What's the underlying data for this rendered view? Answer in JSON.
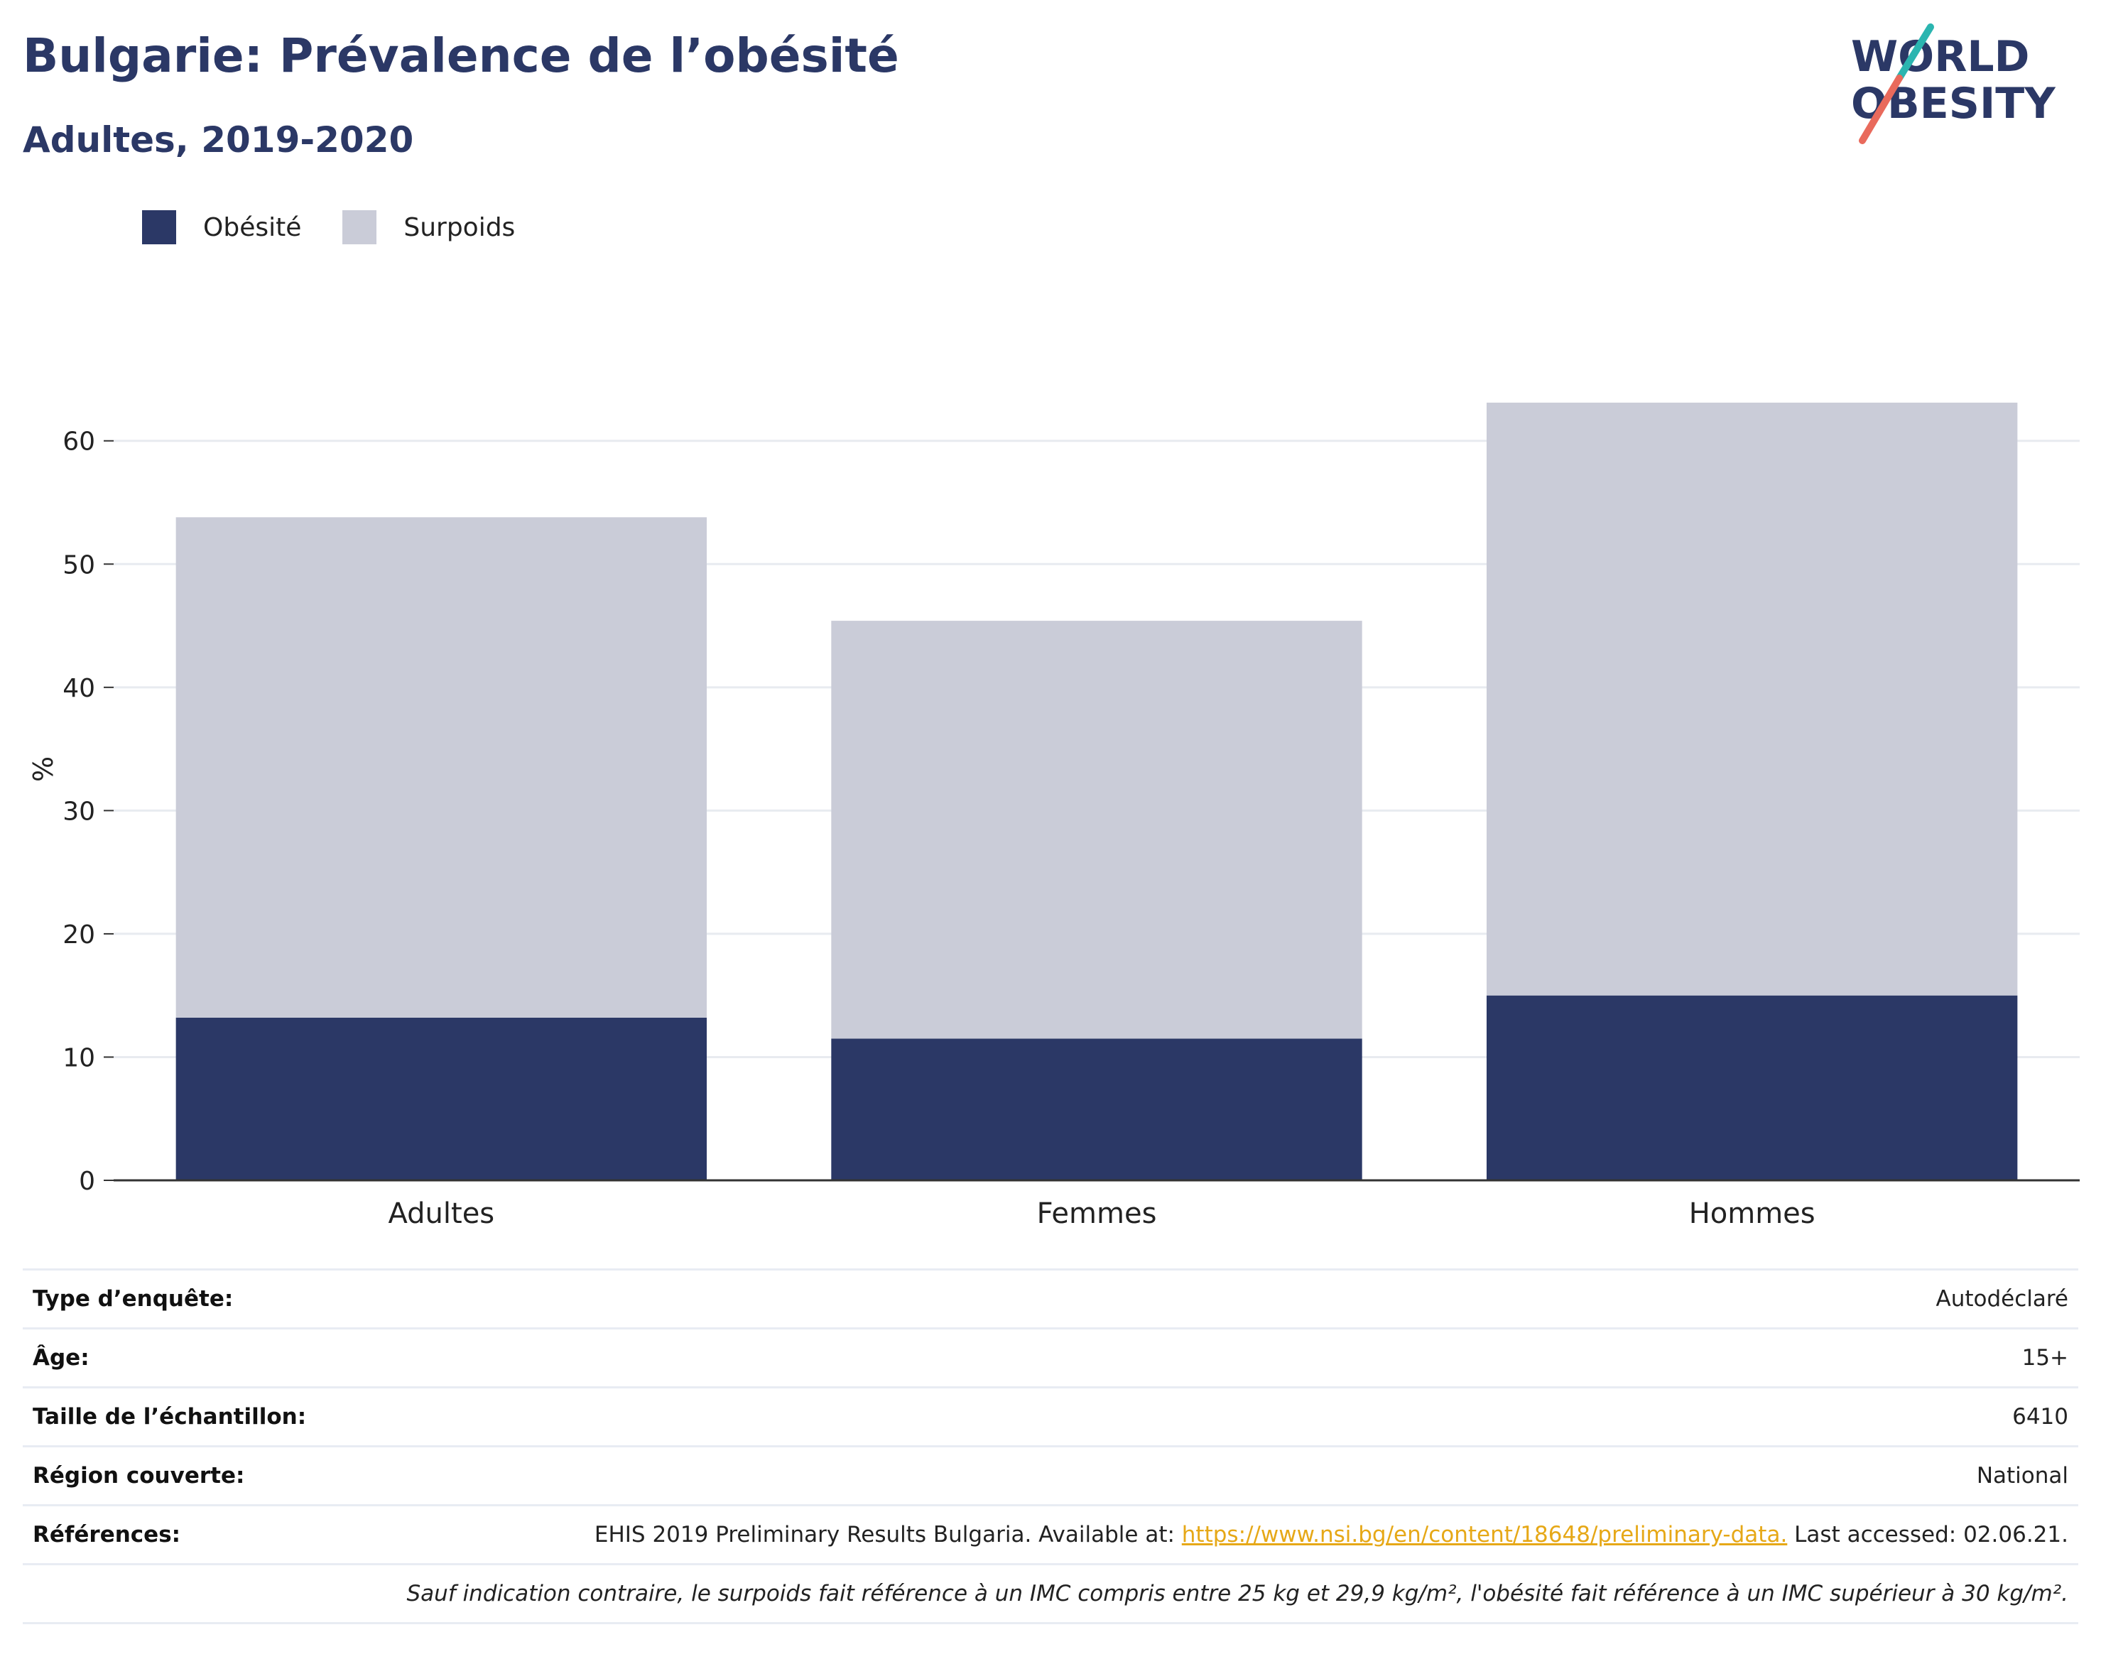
{
  "header": {
    "title": "Bulgarie: Prévalence de l’obésité",
    "subtitle": "Adultes, 2019-2020"
  },
  "logo": {
    "line1": "WORLD",
    "line2": "OBESITY",
    "colors": {
      "text": "#2b3866",
      "slash_teal": "#2bb5b0",
      "slash_coral": "#e96a5c"
    }
  },
  "legend": {
    "items": [
      {
        "label": "Obésité",
        "color": "#2b3866"
      },
      {
        "label": "Surpoids",
        "color": "#caccd8"
      }
    ]
  },
  "chart_data": {
    "type": "bar",
    "stacked": true,
    "categories": [
      "Adultes",
      "Femmes",
      "Hommes"
    ],
    "series": [
      {
        "name": "Obésité",
        "values": [
          13.2,
          11.5,
          15.0
        ],
        "color": "#2b3866"
      },
      {
        "name": "Surpoids",
        "values": [
          40.6,
          33.9,
          48.1
        ],
        "color": "#caccd8"
      }
    ],
    "xlabel": "",
    "ylabel": "%",
    "ylim": [
      0,
      63.5
    ],
    "yticks": [
      0,
      10,
      20,
      30,
      40,
      50,
      60
    ],
    "grid": true,
    "legend_position": "top-left"
  },
  "info": {
    "rows": [
      {
        "label": "Type d’enquête:",
        "value": "Autodéclaré"
      },
      {
        "label": "Âge:",
        "value": "15+"
      },
      {
        "label": "Taille de l’échantillon:",
        "value": "6410"
      },
      {
        "label": "Région couverte:",
        "value": "National"
      }
    ],
    "references": {
      "label": "Références:",
      "prefix": "EHIS 2019 Preliminary Results Bulgaria. Available at: ",
      "link": "https://www.nsi.bg/en/content/18648/preliminary-data.",
      "suffix": " Last accessed: 02.06.21."
    },
    "note": "Sauf indication contraire, le surpoids fait référence à un IMC compris entre 25 kg et 29,9 kg/m², l'obésité fait référence à un IMC supérieur à 30 kg/m²."
  }
}
